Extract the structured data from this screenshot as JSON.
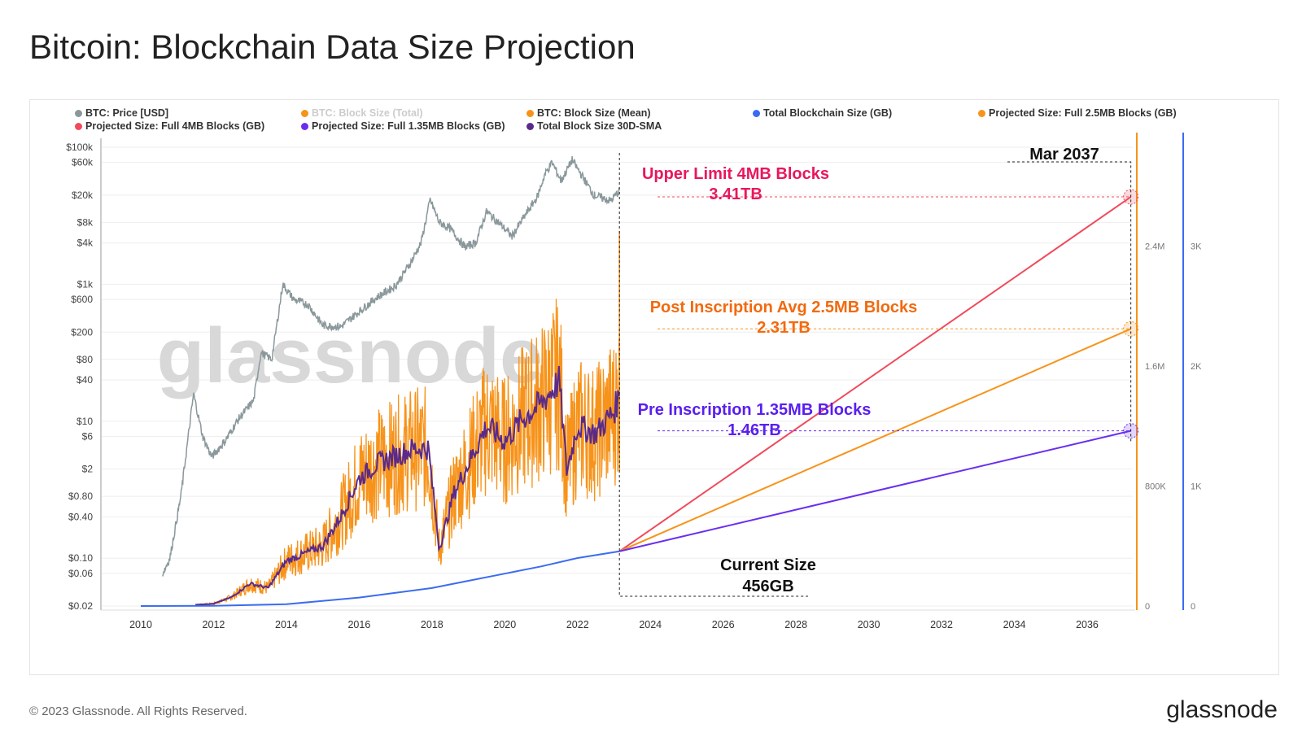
{
  "title": "Bitcoin: Blockchain Data Size Projection",
  "footer": "© 2023 Glassnode. All Rights Reserved.",
  "brand": "glassnode",
  "watermark": "glassnode",
  "chart_data": {
    "type": "line",
    "title": "Bitcoin: Blockchain Data Size Projection",
    "legend": [
      {
        "name": "BTC: Price [USD]",
        "color": "#8a989b"
      },
      {
        "name": "BTC: Block Size (Total)",
        "color": "#f7931a",
        "hidden": true
      },
      {
        "name": "BTC: Block Size (Mean)",
        "color": "#f7931a"
      },
      {
        "name": "Total Blockchain Size (GB)",
        "color": "#3b6cf0"
      },
      {
        "name": "Projected Size: Full 2.5MB Blocks (GB)",
        "color": "#f7931a"
      },
      {
        "name": "Projected Size: Full 4MB Blocks (GB)",
        "color": "#f04a5c"
      },
      {
        "name": "Projected Size: Full 1.35MB Blocks (GB)",
        "color": "#6a2ef0"
      },
      {
        "name": "Total Block Size 30D-SMA",
        "color": "#5a2a8a"
      }
    ],
    "x_ticks": [
      "2010",
      "2012",
      "2014",
      "2016",
      "2018",
      "2020",
      "2022",
      "2024",
      "2026",
      "2028",
      "2030",
      "2032",
      "2034",
      "2036"
    ],
    "xlim": [
      2009.0,
      2038.3
    ],
    "price_axis": {
      "scale": "log",
      "ticks": [
        "$100k",
        "$60k",
        "$20k",
        "$8k",
        "$4k",
        "$1k",
        "$600",
        "$200",
        "$80",
        "$40",
        "$10",
        "$6",
        "$2",
        "$0.80",
        "$0.40",
        "$0.10",
        "$0.06",
        "$0.02"
      ],
      "tick_values": [
        100000,
        60000,
        20000,
        8000,
        4000,
        1000,
        600,
        200,
        80,
        40,
        10,
        6,
        2,
        0.8,
        0.4,
        0.1,
        0.06,
        0.02
      ],
      "ylim": [
        0.02,
        100000
      ]
    },
    "block_axis": {
      "ticks": [
        "0",
        "800K",
        "1.6M",
        "2.4M"
      ],
      "tick_values": [
        0,
        800000,
        1600000,
        2400000
      ]
    },
    "size_axis": {
      "ticks": [
        "0",
        "1K",
        "2K",
        "3K"
      ],
      "tick_values": [
        0,
        1000,
        2000,
        3000
      ]
    },
    "series": {
      "price": [
        [
          2010.6,
          0.06
        ],
        [
          2010.8,
          0.1
        ],
        [
          2011.1,
          0.8
        ],
        [
          2011.45,
          25
        ],
        [
          2011.7,
          6
        ],
        [
          2011.95,
          3
        ],
        [
          2012.3,
          5
        ],
        [
          2012.7,
          11
        ],
        [
          2013.1,
          20
        ],
        [
          2013.3,
          100
        ],
        [
          2013.6,
          80
        ],
        [
          2013.9,
          1000
        ],
        [
          2014.2,
          600
        ],
        [
          2014.6,
          500
        ],
        [
          2015.0,
          250
        ],
        [
          2015.5,
          240
        ],
        [
          2016.0,
          400
        ],
        [
          2016.5,
          650
        ],
        [
          2017.0,
          950
        ],
        [
          2017.4,
          2000
        ],
        [
          2017.7,
          4000
        ],
        [
          2017.95,
          17000
        ],
        [
          2018.2,
          8000
        ],
        [
          2018.5,
          6500
        ],
        [
          2018.9,
          3500
        ],
        [
          2019.2,
          4000
        ],
        [
          2019.5,
          11500
        ],
        [
          2019.9,
          7300
        ],
        [
          2020.2,
          5000
        ],
        [
          2020.6,
          11000
        ],
        [
          2020.9,
          19000
        ],
        [
          2021.1,
          40000
        ],
        [
          2021.3,
          60000
        ],
        [
          2021.55,
          32000
        ],
        [
          2021.85,
          65000
        ],
        [
          2022.1,
          40000
        ],
        [
          2022.45,
          20000
        ],
        [
          2022.9,
          16500
        ],
        [
          2023.15,
          23000
        ]
      ],
      "block_size_mean": [
        [
          2010.0,
          300
        ],
        [
          2011.0,
          3000
        ],
        [
          2012.0,
          15000
        ],
        [
          2012.5,
          60000
        ],
        [
          2013.0,
          150000
        ],
        [
          2013.5,
          120000
        ],
        [
          2014.0,
          300000
        ],
        [
          2014.5,
          350000
        ],
        [
          2015.0,
          400000
        ],
        [
          2015.5,
          600000
        ],
        [
          2016.0,
          850000
        ],
        [
          2016.5,
          950000
        ],
        [
          2017.0,
          1000000
        ],
        [
          2017.5,
          1050000
        ],
        [
          2017.9,
          1050000
        ],
        [
          2018.2,
          380000
        ],
        [
          2018.6,
          750000
        ],
        [
          2019.0,
          950000
        ],
        [
          2019.5,
          1200000
        ],
        [
          2020.0,
          1100000
        ],
        [
          2020.5,
          1250000
        ],
        [
          2021.0,
          1350000
        ],
        [
          2021.5,
          1500000
        ],
        [
          2021.7,
          900000
        ],
        [
          2022.0,
          1200000
        ],
        [
          2022.5,
          1150000
        ],
        [
          2023.0,
          1300000
        ],
        [
          2023.15,
          1400000
        ]
      ],
      "blockchain_size_gb": [
        [
          2010.0,
          0
        ],
        [
          2012.0,
          2
        ],
        [
          2014.0,
          15
        ],
        [
          2016.0,
          70
        ],
        [
          2017.0,
          110
        ],
        [
          2018.0,
          150
        ],
        [
          2019.0,
          210
        ],
        [
          2020.0,
          270
        ],
        [
          2021.0,
          330
        ],
        [
          2022.0,
          400
        ],
        [
          2023.15,
          456
        ]
      ],
      "projection_start": [
        2023.15,
        456
      ],
      "projection_end_year": 2037.2,
      "projection_4mb": 3410,
      "projection_2_5mb": 2310,
      "projection_1_35mb": 1460
    },
    "annotations": {
      "date": "Mar 2037",
      "upper_title": "Upper Limit 4MB Blocks",
      "upper_value": "3.41TB",
      "post_title": "Post Inscription Avg 2.5MB Blocks",
      "post_value": "2.31TB",
      "pre_title": "Pre Inscription 1.35MB Blocks",
      "pre_value": "1.46TB",
      "current_title": "Current Size",
      "current_value": "456GB"
    }
  }
}
